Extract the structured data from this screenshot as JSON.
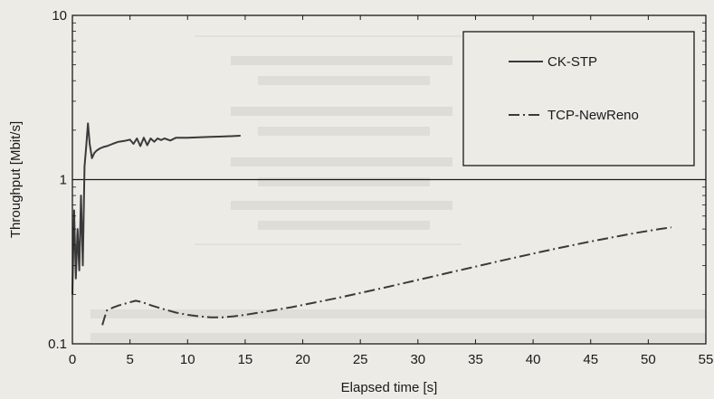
{
  "chart_data": {
    "type": "line",
    "xlabel": "Elapsed time [s]",
    "ylabel": "Throughput [Mbit/s]",
    "xlim": [
      0,
      55
    ],
    "ylim": [
      0.1,
      10
    ],
    "yscale": "log",
    "x_ticks": [
      0,
      5,
      10,
      15,
      20,
      25,
      30,
      35,
      40,
      45,
      50,
      55
    ],
    "x_tick_labels": [
      "0",
      "5",
      "10",
      "15",
      "20",
      "25",
      "30",
      "35",
      "40",
      "45",
      "50",
      "55"
    ],
    "y_ticks": [
      0.1,
      1,
      10
    ],
    "y_tick_labels": [
      "0.1",
      "1",
      "10"
    ],
    "reference_line_y": 1,
    "legend_position": "top-right",
    "series": [
      {
        "name": "CK-STP",
        "style": "solid",
        "color": "#3a3a3a",
        "x": [
          0.0,
          0.05,
          0.15,
          0.3,
          0.45,
          0.6,
          0.75,
          0.9,
          1.05,
          1.2,
          1.35,
          1.5,
          1.7,
          1.9,
          2.1,
          2.4,
          2.7,
          3.0,
          3.5,
          4.0,
          4.5,
          5.0,
          5.3,
          5.6,
          5.9,
          6.2,
          6.5,
          6.8,
          7.1,
          7.4,
          7.7,
          8.0,
          8.5,
          9.0,
          10.0,
          11.0,
          12.0,
          13.0,
          14.0,
          14.6
        ],
        "y": [
          0.2,
          0.3,
          0.65,
          0.25,
          0.5,
          0.28,
          0.8,
          0.3,
          1.2,
          1.6,
          2.2,
          1.65,
          1.35,
          1.45,
          1.5,
          1.55,
          1.58,
          1.6,
          1.65,
          1.7,
          1.72,
          1.75,
          1.65,
          1.78,
          1.6,
          1.8,
          1.62,
          1.78,
          1.7,
          1.78,
          1.74,
          1.78,
          1.73,
          1.8,
          1.8,
          1.81,
          1.82,
          1.83,
          1.84,
          1.85
        ]
      },
      {
        "name": "TCP-NewReno",
        "style": "dash-dot",
        "color": "#3a3a3a",
        "x": [
          2.6,
          2.8,
          3.0,
          3.5,
          4.0,
          4.5,
          5.0,
          5.5,
          6.0,
          7.0,
          8.0,
          9.0,
          10.0,
          11.0,
          12.0,
          13.0,
          14.0,
          15.0,
          17.0,
          19.0,
          21.0,
          23.0,
          25.0,
          27.0,
          29.0,
          31.0,
          33.0,
          35.0,
          37.0,
          39.0,
          41.0,
          43.0,
          45.0,
          47.0,
          49.0,
          51.0,
          52.0
        ],
        "y": [
          0.13,
          0.145,
          0.16,
          0.166,
          0.171,
          0.175,
          0.179,
          0.183,
          0.18,
          0.17,
          0.162,
          0.155,
          0.15,
          0.147,
          0.145,
          0.145,
          0.147,
          0.15,
          0.158,
          0.167,
          0.178,
          0.19,
          0.204,
          0.219,
          0.236,
          0.254,
          0.274,
          0.295,
          0.318,
          0.342,
          0.367,
          0.393,
          0.42,
          0.447,
          0.474,
          0.5,
          0.512
        ]
      }
    ]
  }
}
